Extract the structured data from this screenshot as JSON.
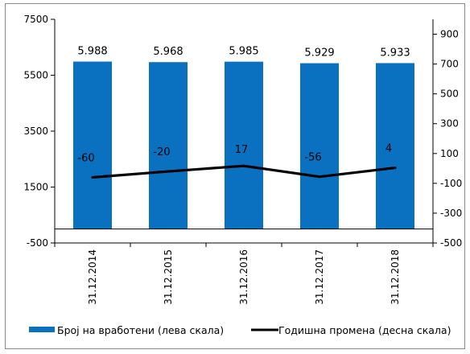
{
  "chart_data": {
    "type": "bar",
    "categories": [
      "31.12.2014",
      "31.12.2015",
      "31.12.2016",
      "31.12.2017",
      "31.12.2018"
    ],
    "series": [
      {
        "name": "Број на вработени (лева скала)",
        "type": "bar",
        "axis": "left",
        "color": "#0a70c0",
        "values": [
          5988,
          5968,
          5985,
          5929,
          5933
        ],
        "labels": [
          "5.988",
          "5.968",
          "5.985",
          "5.929",
          "5.933"
        ]
      },
      {
        "name": "Годишна промена (десна скала)",
        "type": "line",
        "axis": "right",
        "color": "#000000",
        "values": [
          -60,
          -20,
          17,
          -56,
          4
        ],
        "labels": [
          "-60",
          "-20",
          "17",
          "-56",
          "4"
        ]
      }
    ],
    "y_left": {
      "ylim": [
        -500,
        7500
      ],
      "ticks": [
        -500,
        1500,
        3500,
        5500,
        7500
      ]
    },
    "y_right": {
      "ylim": [
        -500,
        1000
      ],
      "ticks": [
        -500,
        -300,
        -100,
        100,
        300,
        500,
        700,
        900
      ]
    },
    "grid": false,
    "legend_position": "bottom"
  }
}
